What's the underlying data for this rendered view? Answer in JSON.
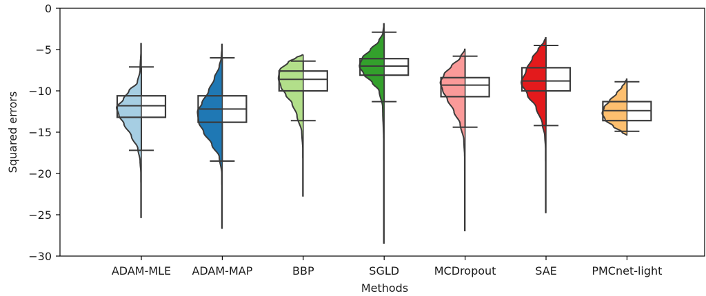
{
  "chart_data": {
    "type": "violin-box",
    "xlabel": "Methods",
    "ylabel": "Squared errors",
    "ylim": [
      -30,
      0
    ],
    "yticks": [
      0,
      -5,
      -10,
      -15,
      -20,
      -25,
      -30
    ],
    "ytick_labels": [
      "0",
      "−5",
      "−10",
      "−15",
      "−20",
      "−25",
      "−30"
    ],
    "grid": false,
    "categories": [
      "ADAM-MLE",
      "ADAM-MAP",
      "BBP",
      "SGLD",
      "MCDropout",
      "SAE",
      "PMCnet-light"
    ],
    "colors": [
      "#a6cee3",
      "#1f78b4",
      "#b2df8a",
      "#33a02c",
      "#fb9a99",
      "#e31a1c",
      "#fdbf6f"
    ],
    "series": [
      {
        "box": {
          "whisker_low": -17.2,
          "q1": -13.2,
          "median": -11.8,
          "q3": -10.6,
          "whisker_high": -7.1
        },
        "violin_range": [
          -25.4,
          -4.2
        ],
        "density": [
          [
            -25.4,
            0.0
          ],
          [
            -20.0,
            0.02
          ],
          [
            -18.5,
            0.05
          ],
          [
            -17.0,
            0.14
          ],
          [
            -15.5,
            0.4
          ],
          [
            -14.0,
            0.7
          ],
          [
            -13.0,
            0.9
          ],
          [
            -12.0,
            1.0
          ],
          [
            -11.0,
            0.72
          ],
          [
            -10.0,
            0.5
          ],
          [
            -9.0,
            0.16
          ],
          [
            -7.5,
            0.05
          ],
          [
            -4.2,
            0.0
          ]
        ]
      },
      {
        "box": {
          "whisker_low": -18.5,
          "q1": -13.8,
          "median": -12.2,
          "q3": -10.6,
          "whisker_high": -6.0
        },
        "violin_range": [
          -26.7,
          -4.3
        ],
        "density": [
          [
            -26.7,
            0.0
          ],
          [
            -20.0,
            0.02
          ],
          [
            -18.0,
            0.12
          ],
          [
            -16.5,
            0.42
          ],
          [
            -15.0,
            0.75
          ],
          [
            -13.8,
            0.95
          ],
          [
            -12.5,
            1.0
          ],
          [
            -11.5,
            0.82
          ],
          [
            -10.0,
            0.55
          ],
          [
            -8.5,
            0.32
          ],
          [
            -7.0,
            0.12
          ],
          [
            -6.0,
            0.04
          ],
          [
            -4.3,
            0.0
          ]
        ]
      },
      {
        "box": {
          "whisker_low": -13.6,
          "q1": -10.0,
          "median": -8.6,
          "q3": -7.6,
          "whisker_high": -6.4
        },
        "violin_range": [
          -22.8,
          -5.6
        ],
        "density": [
          [
            -22.8,
            0.0
          ],
          [
            -17.0,
            0.02
          ],
          [
            -15.0,
            0.06
          ],
          [
            -13.0,
            0.25
          ],
          [
            -11.5,
            0.45
          ],
          [
            -10.5,
            0.7
          ],
          [
            -9.5,
            0.9
          ],
          [
            -8.5,
            1.0
          ],
          [
            -7.5,
            0.95
          ],
          [
            -6.5,
            0.6
          ],
          [
            -6.0,
            0.3
          ],
          [
            -5.6,
            0.0
          ]
        ]
      },
      {
        "box": {
          "whisker_low": -11.3,
          "q1": -8.1,
          "median": -7.0,
          "q3": -6.1,
          "whisker_high": -2.9
        },
        "violin_range": [
          -28.5,
          -1.8
        ],
        "density": [
          [
            -28.5,
            0.0
          ],
          [
            -16.0,
            0.02
          ],
          [
            -12.0,
            0.06
          ],
          [
            -10.0,
            0.2
          ],
          [
            -9.0,
            0.48
          ],
          [
            -8.0,
            0.82
          ],
          [
            -7.0,
            1.0
          ],
          [
            -6.0,
            0.88
          ],
          [
            -5.0,
            0.55
          ],
          [
            -4.0,
            0.22
          ],
          [
            -3.0,
            0.05
          ],
          [
            -1.8,
            0.0
          ]
        ]
      },
      {
        "box": {
          "whisker_low": -14.4,
          "q1": -10.7,
          "median": -9.3,
          "q3": -8.4,
          "whisker_high": -5.8
        },
        "violin_range": [
          -27.0,
          -4.9
        ],
        "density": [
          [
            -27.0,
            0.0
          ],
          [
            -18.0,
            0.02
          ],
          [
            -16.0,
            0.05
          ],
          [
            -14.0,
            0.2
          ],
          [
            -12.5,
            0.45
          ],
          [
            -11.0,
            0.72
          ],
          [
            -10.0,
            0.9
          ],
          [
            -9.0,
            1.0
          ],
          [
            -8.0,
            0.85
          ],
          [
            -7.0,
            0.55
          ],
          [
            -6.0,
            0.2
          ],
          [
            -4.9,
            0.0
          ]
        ]
      },
      {
        "box": {
          "whisker_low": -14.2,
          "q1": -10.0,
          "median": -8.8,
          "q3": -7.2,
          "whisker_high": -4.5
        },
        "violin_range": [
          -24.8,
          -3.5
        ],
        "density": [
          [
            -24.8,
            0.0
          ],
          [
            -17.0,
            0.02
          ],
          [
            -15.5,
            0.05
          ],
          [
            -14.0,
            0.15
          ],
          [
            -12.0,
            0.4
          ],
          [
            -10.5,
            0.75
          ],
          [
            -9.0,
            1.0
          ],
          [
            -7.5,
            0.8
          ],
          [
            -6.0,
            0.55
          ],
          [
            -5.0,
            0.32
          ],
          [
            -4.0,
            0.08
          ],
          [
            -3.5,
            0.0
          ]
        ]
      },
      {
        "box": {
          "whisker_low": -14.9,
          "q1": -13.6,
          "median": -12.4,
          "q3": -11.3,
          "whisker_high": -8.9
        },
        "violin_range": [
          -15.4,
          -8.5
        ],
        "density": [
          [
            -15.4,
            0.0
          ],
          [
            -15.0,
            0.2
          ],
          [
            -14.3,
            0.55
          ],
          [
            -13.5,
            0.88
          ],
          [
            -12.7,
            1.0
          ],
          [
            -12.0,
            0.92
          ],
          [
            -11.2,
            0.7
          ],
          [
            -10.3,
            0.42
          ],
          [
            -9.5,
            0.2
          ],
          [
            -9.0,
            0.08
          ],
          [
            -8.5,
            0.0
          ]
        ]
      }
    ]
  }
}
